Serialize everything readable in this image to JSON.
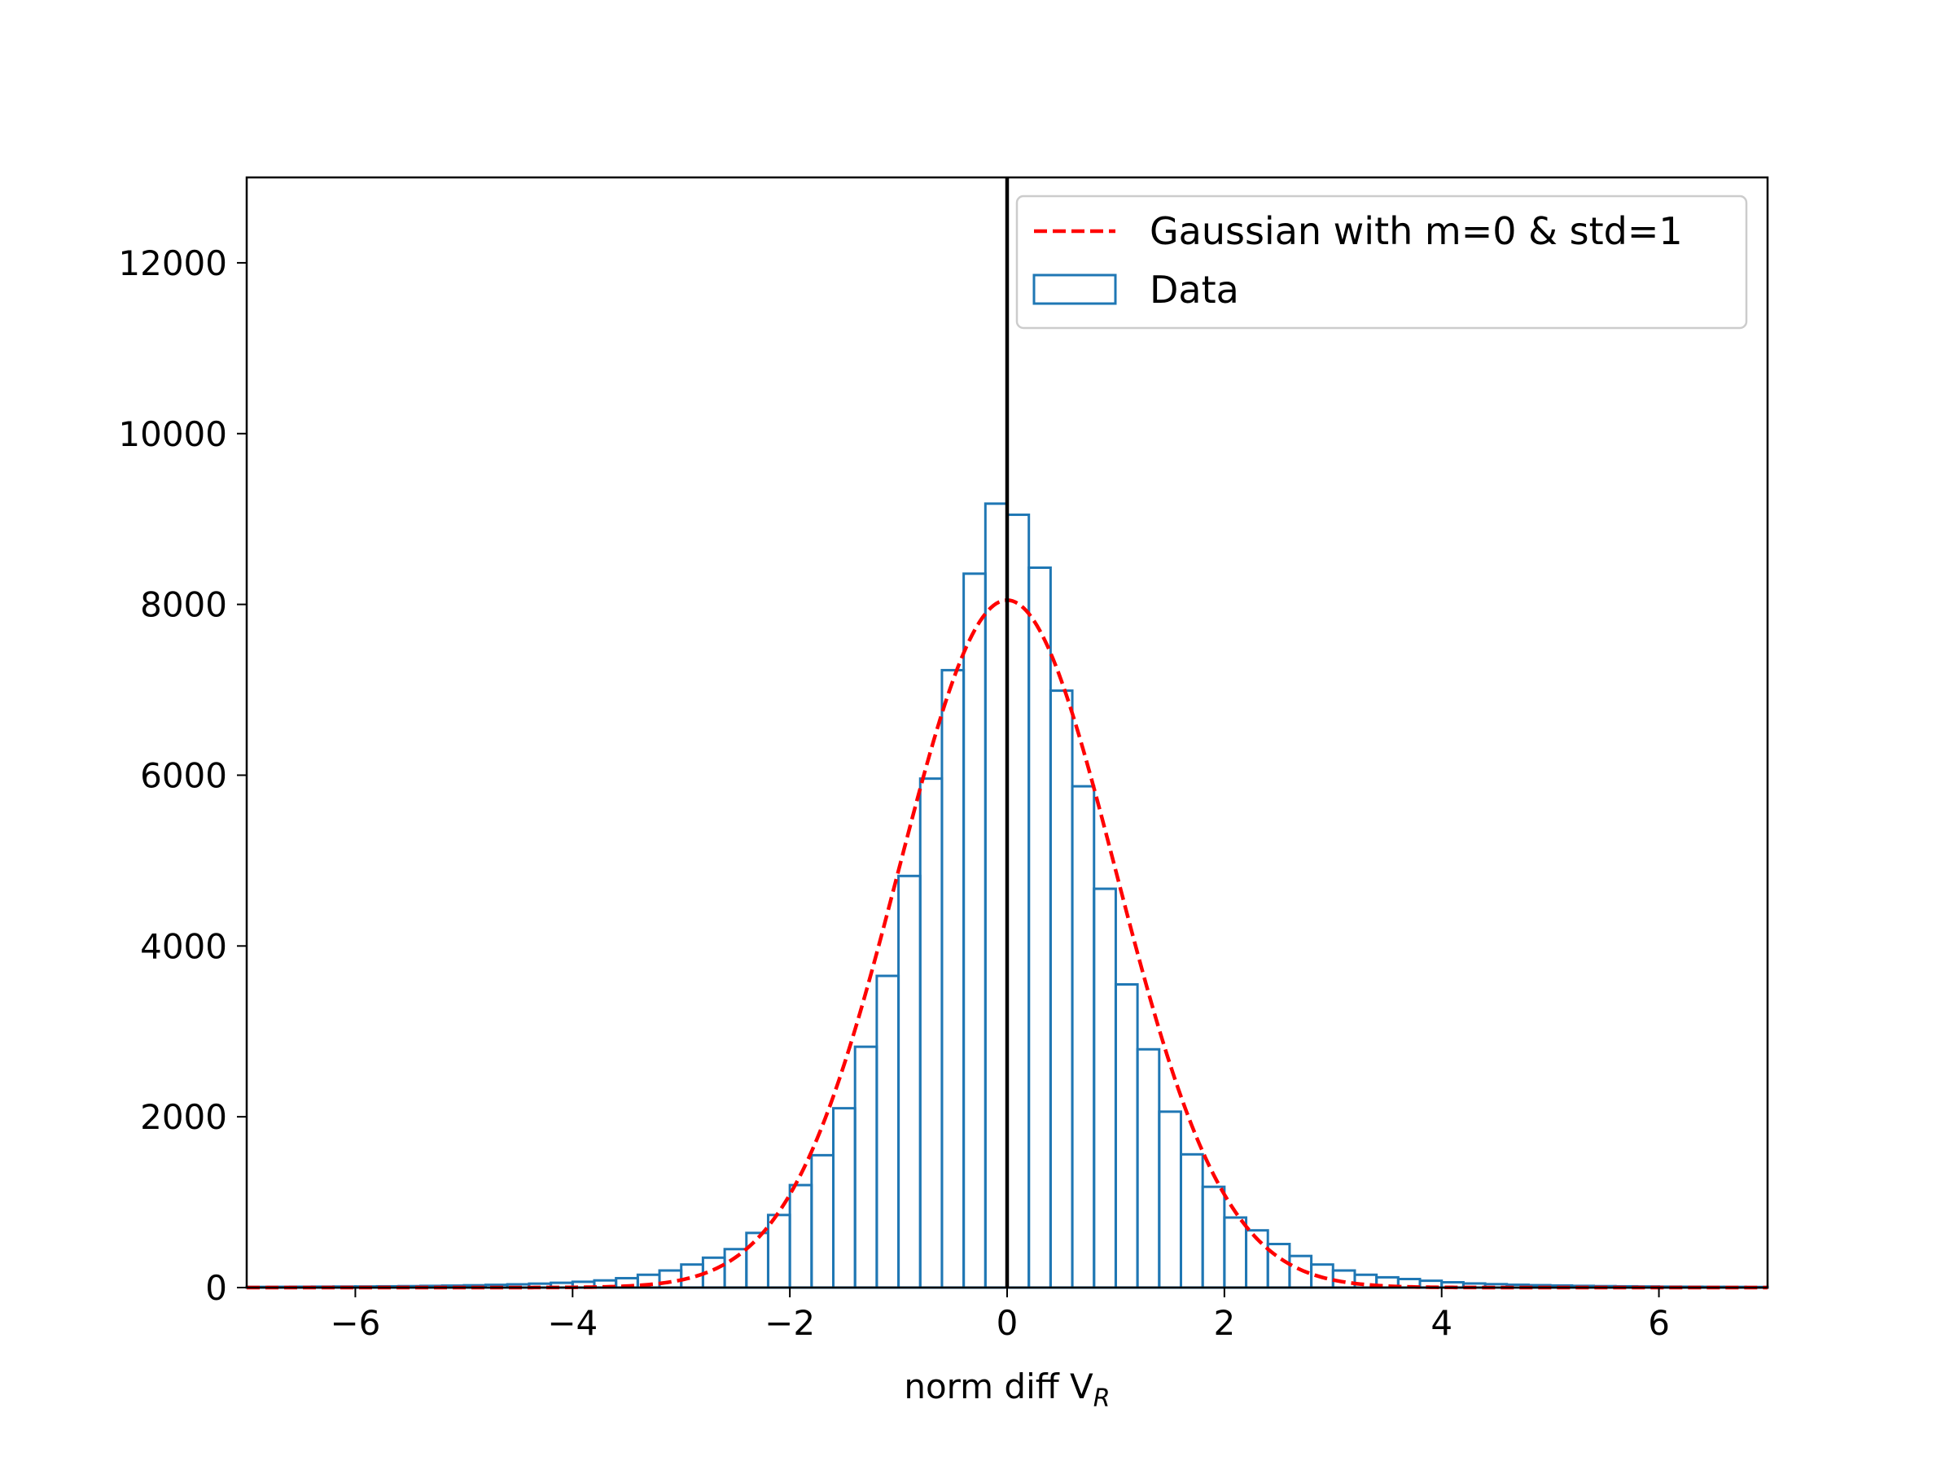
{
  "chart_data": {
    "type": "bar",
    "xlabel": "norm diff V",
    "xlabel_subscript": "R",
    "xlim": [
      -7,
      7
    ],
    "ylim": [
      0,
      13000
    ],
    "xticks": [
      -6,
      -4,
      -2,
      0,
      2,
      4,
      6
    ],
    "xtick_labels": [
      "−6",
      "−4",
      "−2",
      "0",
      "2",
      "4",
      "6"
    ],
    "yticks": [
      0,
      2000,
      4000,
      6000,
      8000,
      10000,
      12000
    ],
    "ytick_labels": [
      "0",
      "2000",
      "4000",
      "6000",
      "8000",
      "10000",
      "12000"
    ],
    "grid": false,
    "legend_position": "top-right",
    "vertical_line_x": 0,
    "bin_edges": [
      -7.0,
      -6.8,
      -6.6,
      -6.4,
      -6.2,
      -6.0,
      -5.8,
      -5.6,
      -5.4,
      -5.2,
      -5.0,
      -4.8,
      -4.6,
      -4.4,
      -4.2,
      -4.0,
      -3.8,
      -3.6,
      -3.4,
      -3.2,
      -3.0,
      -2.8,
      -2.6,
      -2.4,
      -2.2,
      -2.0,
      -1.8,
      -1.6,
      -1.4,
      -1.2,
      -1.0,
      -0.8,
      -0.6,
      -0.4,
      -0.2,
      0.0,
      0.2,
      0.4,
      0.6,
      0.8,
      1.0,
      1.2,
      1.4,
      1.6,
      1.8,
      2.0,
      2.2,
      2.4,
      2.6,
      2.8,
      3.0,
      3.2,
      3.4,
      3.6,
      3.8,
      4.0,
      4.2,
      4.4,
      4.6,
      4.8,
      5.0,
      5.2,
      5.4,
      5.6,
      5.8,
      6.0,
      6.2,
      6.4,
      6.6,
      6.8,
      7.0
    ],
    "series": [
      {
        "name": "Data",
        "kind": "step-histogram",
        "color": "#1f77b4",
        "values": [
          8,
          9,
          10,
          11,
          12,
          13,
          15,
          17,
          20,
          23,
          27,
          32,
          38,
          46,
          56,
          68,
          84,
          110,
          150,
          200,
          270,
          350,
          450,
          640,
          850,
          1200,
          1550,
          2100,
          2820,
          3650,
          4820,
          5960,
          7230,
          8360,
          9180,
          9050,
          8430,
          6990,
          5870,
          4670,
          3550,
          2790,
          2060,
          1560,
          1180,
          820,
          670,
          510,
          370,
          270,
          200,
          150,
          120,
          100,
          80,
          62,
          48,
          40,
          33,
          28,
          24,
          20,
          17,
          15,
          13,
          11,
          10,
          9,
          8,
          7
        ]
      },
      {
        "name": "Gaussian with m=0 & std=1",
        "kind": "dashed-line",
        "color": "#ff0000",
        "mean": 0,
        "std": 1,
        "peak": 8050
      }
    ]
  }
}
